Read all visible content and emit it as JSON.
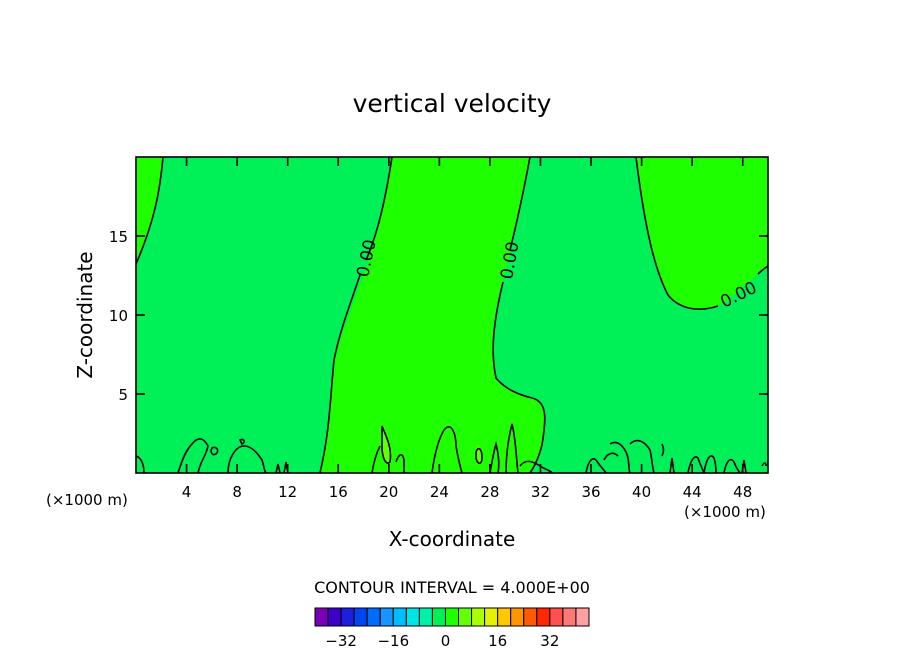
{
  "chart_data": {
    "type": "contour",
    "title": "vertical velocity",
    "xlabel": "X-coordinate",
    "ylabel": "Z-coordinate",
    "x_unit_label": "(×1000 m)",
    "x_unit_label_2": "(×1000 m)",
    "xlim": [
      0,
      50
    ],
    "ylim": [
      0,
      20
    ],
    "xticks": [
      4,
      8,
      12,
      16,
      20,
      24,
      28,
      32,
      36,
      40,
      44,
      48
    ],
    "yticks": [
      5,
      10,
      15
    ],
    "contour_interval_text": "CONTOUR INTERVAL = 4.000E+00",
    "contour_labels": [
      "0.00",
      "0.00",
      "0.00"
    ],
    "colorbar": {
      "colors": [
        "#7a00b8",
        "#3c00c8",
        "#1e1ee0",
        "#0046f0",
        "#006cff",
        "#1696ff",
        "#00beff",
        "#00e6e6",
        "#00f0a8",
        "#00f058",
        "#1eff00",
        "#64ff00",
        "#aaff00",
        "#e6f000",
        "#ffc800",
        "#ff9600",
        "#ff5a00",
        "#ff2800",
        "#ff5050",
        "#ff7878",
        "#ffa0a0"
      ],
      "tick_values": [
        -32,
        -16,
        0,
        16,
        32
      ],
      "tick_labels": [
        "−32",
        "−16",
        "0",
        "16",
        "32"
      ],
      "min": -40,
      "max": 44
    },
    "regions": {
      "w_negative_color": "#00f058",
      "w_positive_color": "#1eff00",
      "w_small_pocket_color": "#64ff00"
    }
  }
}
